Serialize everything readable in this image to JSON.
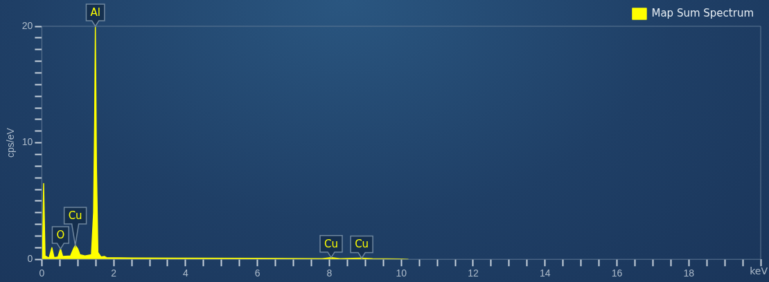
{
  "chart_data": {
    "type": "area",
    "xlabel": "keV",
    "ylabel": "cps/eV",
    "xlim": [
      0,
      20
    ],
    "ylim": [
      0,
      20
    ],
    "xticks": [
      0,
      {
        "value": 0.5,
        "label": null
      },
      {
        "value": 1,
        "label": null
      },
      {
        "value": 1.5,
        "label": null
      },
      2,
      {
        "value": 2.5,
        "label": null
      },
      {
        "value": 3,
        "label": null
      },
      {
        "value": 3.5,
        "label": null
      },
      4,
      {
        "value": 4.5,
        "label": null
      },
      {
        "value": 5,
        "label": null
      },
      {
        "value": 5.5,
        "label": null
      },
      6,
      {
        "value": 6.5,
        "label": null
      },
      {
        "value": 7,
        "label": null
      },
      {
        "value": 7.5,
        "label": null
      },
      8,
      {
        "value": 8.5,
        "label": null
      },
      {
        "value": 9,
        "label": null
      },
      {
        "value": 9.5,
        "label": null
      },
      10,
      {
        "value": 10.5,
        "label": null
      },
      {
        "value": 11,
        "label": null
      },
      {
        "value": 11.5,
        "label": null
      },
      12,
      {
        "value": 12.5,
        "label": null
      },
      {
        "value": 13,
        "label": null
      },
      {
        "value": 13.5,
        "label": null
      },
      14,
      {
        "value": 14.5,
        "label": null
      },
      {
        "value": 15,
        "label": null
      },
      {
        "value": 15.5,
        "label": null
      },
      16,
      {
        "value": 16.5,
        "label": null
      },
      {
        "value": 17,
        "label": null
      },
      {
        "value": 17.5,
        "label": null
      },
      18,
      {
        "value": 18.5,
        "label": null
      },
      {
        "value": 19,
        "label": null
      },
      {
        "value": 19.5,
        "label": null
      },
      {
        "value": 20,
        "label": null
      }
    ],
    "yticks": [
      0,
      {
        "value": 1,
        "label": null
      },
      {
        "value": 2,
        "label": null
      },
      {
        "value": 3,
        "label": null
      },
      {
        "value": 4,
        "label": null
      },
      {
        "value": 5,
        "label": null
      },
      {
        "value": 6,
        "label": null
      },
      {
        "value": 7,
        "label": null
      },
      {
        "value": 8,
        "label": null
      },
      {
        "value": 9,
        "label": null
      },
      10,
      {
        "value": 11,
        "label": null
      },
      {
        "value": 12,
        "label": null
      },
      {
        "value": 13,
        "label": null
      },
      {
        "value": 14,
        "label": null
      },
      {
        "value": 15,
        "label": null
      },
      {
        "value": 16,
        "label": null
      },
      {
        "value": 17,
        "label": null
      },
      {
        "value": 18,
        "label": null
      },
      {
        "value": 19,
        "label": null
      },
      20
    ],
    "grid": false,
    "legend": "top right",
    "marker": "none",
    "series": [
      {
        "name": "Map Sum Spectrum",
        "color": "#ffff00",
        "x": [
          0,
          0.02,
          0.05,
          0.09,
          0.2,
          0.28,
          0.34,
          0.45,
          0.52,
          0.58,
          0.8,
          0.88,
          0.93,
          1.0,
          1.06,
          1.2,
          1.38,
          1.44,
          1.47,
          1.49,
          1.52,
          1.56,
          1.65,
          1.74,
          1.8,
          2.5,
          4,
          6,
          7.8,
          8.05,
          8.3,
          8.9,
          9.2,
          10,
          10.2
        ],
        "values": [
          0,
          0.5,
          6.5,
          0.3,
          0.1,
          1.0,
          0.15,
          0.2,
          0.9,
          0.25,
          0.3,
          0.9,
          1.2,
          0.9,
          0.4,
          0.3,
          0.4,
          4,
          12,
          20,
          8,
          0.6,
          0.2,
          0.25,
          0.15,
          0.12,
          0.1,
          0.08,
          0.06,
          0.15,
          0.06,
          0.1,
          0.05,
          0.02,
          0
        ]
      }
    ],
    "annotations": [
      {
        "text": "Al",
        "x": 1.49,
        "y": 20
      },
      {
        "text": "O",
        "x": 0.52,
        "y": 0.9
      },
      {
        "text": "Cu",
        "x": 0.93,
        "y": 1.2
      },
      {
        "text": "Cu",
        "x": 8.05,
        "y": 0.15
      },
      {
        "text": "Cu",
        "x": 8.9,
        "y": 0.1
      }
    ]
  }
}
